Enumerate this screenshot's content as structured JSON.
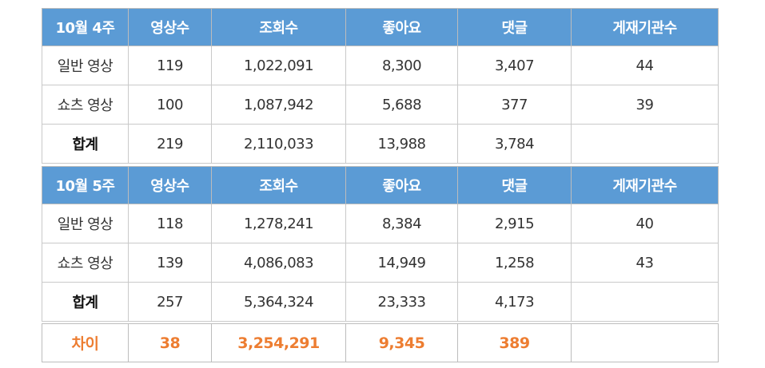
{
  "week4": {
    "headers": [
      "10월 4주",
      "영상수",
      "조회수",
      "좋아요",
      "댓글",
      "게재기관수"
    ],
    "rows": [
      [
        "일반 영상",
        "119",
        "1,022,091",
        "8,300",
        "3,407",
        "44"
      ],
      [
        "쇼츠 영상",
        "100",
        "1,087,942",
        "5,688",
        "377",
        "39"
      ],
      [
        "합계",
        "219",
        "2,110,033",
        "13,988",
        "3,784",
        ""
      ]
    ]
  },
  "week5": {
    "headers": [
      "10월 5주",
      "영상수",
      "조회수",
      "좋아요",
      "댓글",
      "게재기관수"
    ],
    "rows": [
      [
        "일반 영상",
        "118",
        "1,278,241",
        "8,384",
        "2,915",
        "40"
      ],
      [
        "쇼츠 영상",
        "139",
        "4,086,083",
        "14,949",
        "1,258",
        "43"
      ],
      [
        "합계",
        "257",
        "5,364,324",
        "23,333",
        "4,173",
        ""
      ]
    ]
  },
  "difference": [
    "차이",
    "38",
    "3,254,291",
    "9,345",
    "389",
    ""
  ],
  "colors": {
    "header_bg": "#5b9bd5",
    "header_text": "#ffffff",
    "difference_text": "#ed7d31",
    "border": "#c9c9c9"
  }
}
